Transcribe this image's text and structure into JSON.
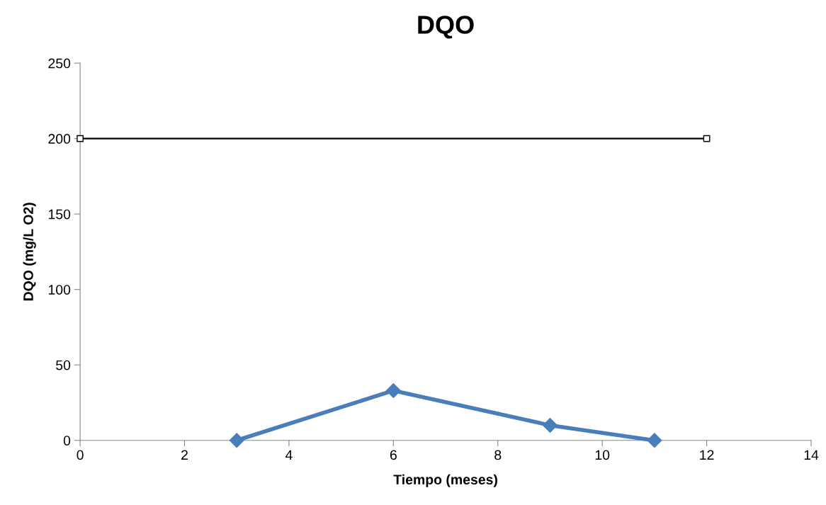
{
  "chart_data": {
    "type": "line",
    "title": "DQO",
    "xlabel": "Tiempo (meses)",
    "ylabel": "DQO (mg/L O2)",
    "xlim": [
      0,
      14
    ],
    "xticks": [
      0,
      2,
      4,
      6,
      8,
      10,
      12,
      14
    ],
    "ylim": [
      0,
      250
    ],
    "yticks": [
      0,
      50,
      100,
      150,
      200,
      250
    ],
    "grid": false,
    "legend": false,
    "series": [
      {
        "color": "#4a7ebb",
        "x": [
          3,
          6,
          9,
          11
        ],
        "values": [
          0,
          33,
          10,
          0
        ],
        "marker": "diamond"
      },
      {
        "color": "#000000",
        "x": [
          0,
          12
        ],
        "values": [
          200,
          200
        ],
        "marker": "square"
      }
    ]
  }
}
